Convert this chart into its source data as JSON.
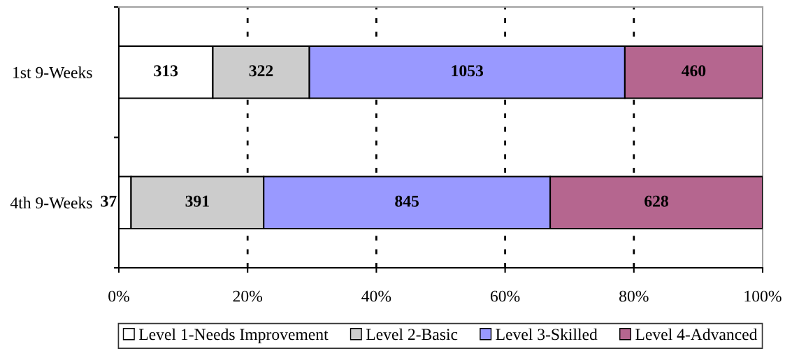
{
  "chart_data": {
    "type": "bar",
    "orientation": "horizontal",
    "stacked": true,
    "categories": [
      "1st 9-Weeks",
      "4th 9-Weeks"
    ],
    "series": [
      {
        "name": "Level 1-Needs Improvement",
        "color": "#ffffff",
        "values": [
          14.6,
          1.9
        ]
      },
      {
        "name": "Level 2-Basic",
        "color": "#cccccc",
        "values": [
          15.0,
          20.6
        ]
      },
      {
        "name": "Level 3-Skilled",
        "color": "#9999ff",
        "values": [
          49.0,
          44.5
        ]
      },
      {
        "name": "Level 4-Advanced",
        "color": "#b5668f",
        "values": [
          21.4,
          33.0
        ]
      }
    ],
    "annotations": [
      "313",
      "322",
      "1053",
      "460",
      "37",
      "391",
      "845",
      "628"
    ],
    "xlim": [
      0,
      100
    ],
    "xticks": [
      {
        "value": 0,
        "label": "0%"
      },
      {
        "value": 20,
        "label": "20%"
      },
      {
        "value": 40,
        "label": "40%"
      },
      {
        "value": 60,
        "label": "60%"
      },
      {
        "value": 80,
        "label": "80%"
      },
      {
        "value": 100,
        "label": "100%"
      }
    ],
    "grid": "x",
    "legend": "bottom"
  }
}
